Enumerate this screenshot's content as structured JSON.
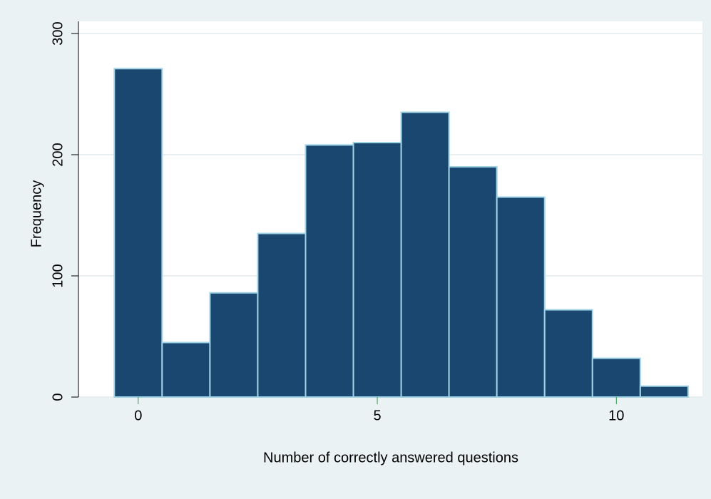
{
  "chart_data": {
    "type": "histogram",
    "x_label": "Number of correctly answered questions",
    "y_label": "Frequency",
    "bins": [
      -0.5,
      0.5,
      1.5,
      2.5,
      3.5,
      4.5,
      5.5,
      6.5,
      7.5,
      8.5,
      9.5,
      10.5,
      11.5
    ],
    "values": [
      271,
      45,
      86,
      135,
      208,
      210,
      235,
      190,
      165,
      72,
      32,
      9
    ],
    "color": "#1a476f",
    "edge_color": "#9fd3e6",
    "xlim": [
      -1.25,
      11.8
    ],
    "xticks": [
      0,
      5,
      10
    ],
    "ylim": [
      0,
      310
    ],
    "yticks": [
      0,
      100,
      200,
      300
    ],
    "grid": true
  }
}
